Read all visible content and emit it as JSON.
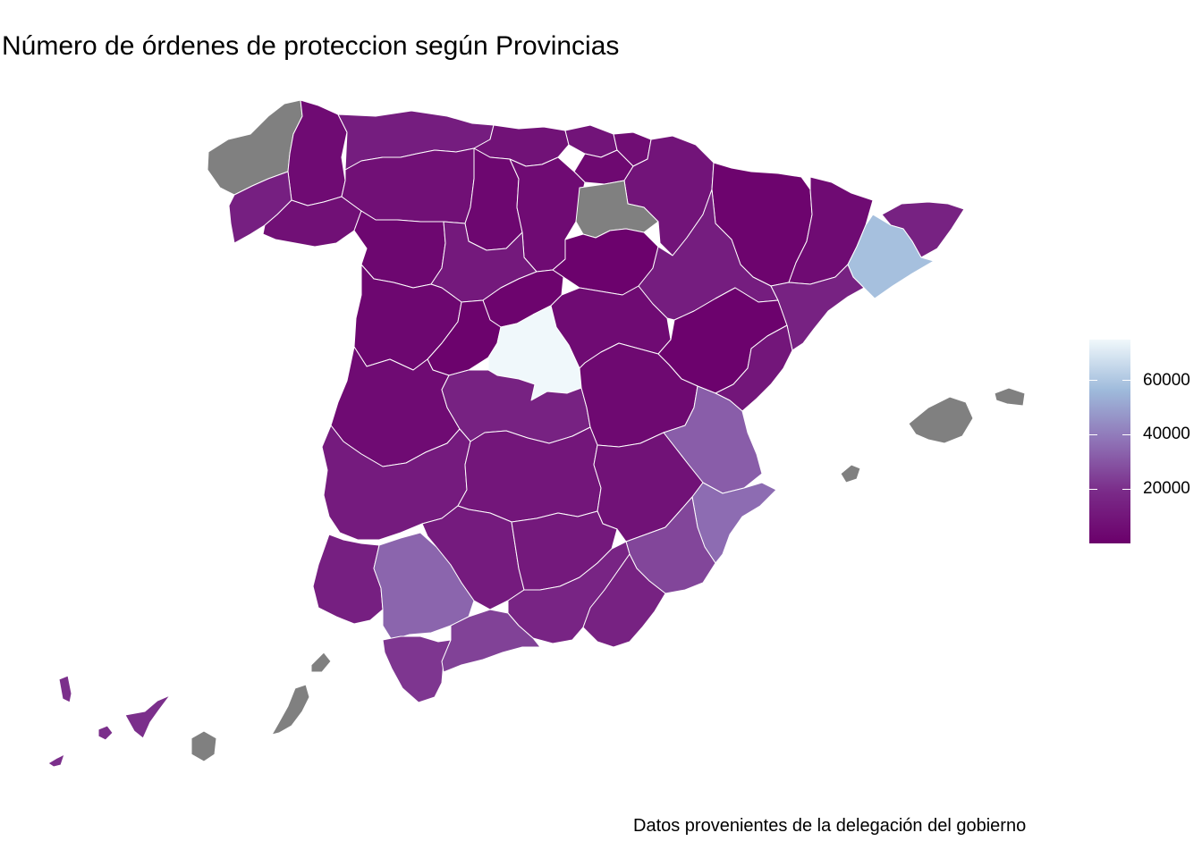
{
  "title": "Número de órdenes de proteccion según Provincias",
  "caption": "Datos provenientes de la delegación del gobierno",
  "colors": {
    "na_fill": "#808080",
    "border": "#ffffff",
    "scale": [
      "#6b006b",
      "#7a2a88",
      "#8f72b6",
      "#9ebadb",
      "#f0f8fb"
    ]
  },
  "legend": {
    "min": 0,
    "max": 75000,
    "ticks": [
      {
        "value": 20000,
        "label": "20000"
      },
      {
        "value": 40000,
        "label": "40000"
      },
      {
        "value": 60000,
        "label": "60000"
      }
    ]
  },
  "regions": [
    {
      "name": "A Coruña",
      "value": null
    },
    {
      "name": "Lugo",
      "value": 5000
    },
    {
      "name": "Pontevedra",
      "value": 14000
    },
    {
      "name": "Ourense",
      "value": 7000
    },
    {
      "name": "Asturias",
      "value": 13000
    },
    {
      "name": "Cantabria",
      "value": 8000
    },
    {
      "name": "Bizkaia",
      "value": 9000
    },
    {
      "name": "Gipuzkoa",
      "value": 6000
    },
    {
      "name": "Araba",
      "value": 4000
    },
    {
      "name": "Navarra",
      "value": 9000
    },
    {
      "name": "León",
      "value": 7000
    },
    {
      "name": "Palencia",
      "value": 3000
    },
    {
      "name": "Burgos",
      "value": 5000
    },
    {
      "name": "La Rioja",
      "value": null
    },
    {
      "name": "Zamora",
      "value": 3000
    },
    {
      "name": "Valladolid",
      "value": 11000
    },
    {
      "name": "Soria",
      "value": 1000
    },
    {
      "name": "Salamanca",
      "value": 3000
    },
    {
      "name": "Segovia",
      "value": 2000
    },
    {
      "name": "Ávila",
      "value": 1500
    },
    {
      "name": "Madrid",
      "value": 75000
    },
    {
      "name": "Guadalajara",
      "value": 5000
    },
    {
      "name": "Huesca",
      "value": 2000
    },
    {
      "name": "Zaragoza",
      "value": 13000
    },
    {
      "name": "Teruel",
      "value": 1000
    },
    {
      "name": "Lleida",
      "value": 5000
    },
    {
      "name": "Girona",
      "value": 15000
    },
    {
      "name": "Barcelona",
      "value": 58000
    },
    {
      "name": "Tarragona",
      "value": 15000
    },
    {
      "name": "Cáceres",
      "value": 5000
    },
    {
      "name": "Toledo",
      "value": 15000
    },
    {
      "name": "Cuenca",
      "value": 4000
    },
    {
      "name": "Castellón",
      "value": 10000
    },
    {
      "name": "Valencia",
      "value": 32000
    },
    {
      "name": "Badajoz",
      "value": 12000
    },
    {
      "name": "Ciudad Real",
      "value": 10000
    },
    {
      "name": "Albacete",
      "value": 8000
    },
    {
      "name": "Alicante",
      "value": 36000
    },
    {
      "name": "Murcia",
      "value": 26000
    },
    {
      "name": "Huelva",
      "value": 14000
    },
    {
      "name": "Sevilla",
      "value": 34000
    },
    {
      "name": "Córdoba",
      "value": 12000
    },
    {
      "name": "Jaén",
      "value": 11000
    },
    {
      "name": "Granada",
      "value": 16000
    },
    {
      "name": "Almería",
      "value": 15000
    },
    {
      "name": "Cádiz",
      "value": 22000
    },
    {
      "name": "Málaga",
      "value": 25000
    },
    {
      "name": "Baleares",
      "value": null
    },
    {
      "name": "Santa Cruz de Tenerife",
      "value": 20000
    },
    {
      "name": "Las Palmas",
      "value": null
    }
  ]
}
